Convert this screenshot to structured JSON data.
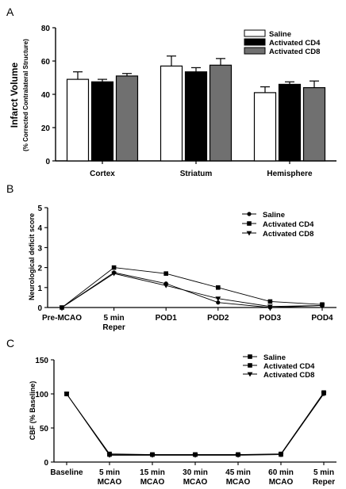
{
  "chart_data": [
    {
      "panel": "A",
      "type": "bar",
      "ylabel": "Infarct Volume",
      "ylabel_sub": "(% Corrected Contralateral Structure)",
      "ylim": [
        0,
        80
      ],
      "yticks": [
        0,
        20,
        40,
        60,
        80
      ],
      "categories": [
        "Cortex",
        "Striatum",
        "Hemisphere"
      ],
      "legend_position": "top-right",
      "series": [
        {
          "name": "Saline",
          "color": "#ffffff",
          "values": [
            49,
            57,
            41
          ],
          "errors": [
            4.5,
            6,
            3.5
          ]
        },
        {
          "name": "Activated CD4",
          "color": "#000000",
          "values": [
            47.5,
            53.5,
            46
          ],
          "errors": [
            1.5,
            2.5,
            1.5
          ]
        },
        {
          "name": "Activated CD8",
          "color": "#707070",
          "values": [
            51,
            57.5,
            44
          ],
          "errors": [
            1.5,
            4,
            4
          ]
        }
      ]
    },
    {
      "panel": "B",
      "type": "line",
      "ylabel": "Neurological deficit score",
      "ylim": [
        0,
        5
      ],
      "yticks": [
        0,
        1,
        2,
        3,
        4,
        5
      ],
      "categories": [
        "Pre-MCAO",
        "5 min\nReper",
        "POD1",
        "POD2",
        "POD3",
        "POD4"
      ],
      "legend_position": "top-right",
      "series": [
        {
          "name": "Saline",
          "marker": "circle",
          "values": [
            0,
            1.75,
            1.2,
            0.25,
            0,
            0.1
          ]
        },
        {
          "name": "Activated CD4",
          "marker": "square",
          "values": [
            0,
            2,
            1.7,
            1,
            0.3,
            0.15
          ]
        },
        {
          "name": "Activated CD8",
          "marker": "triangle-down",
          "values": [
            0,
            1.7,
            1.1,
            0.45,
            0.05,
            0.1
          ]
        }
      ]
    },
    {
      "panel": "C",
      "type": "line",
      "ylabel": "CBF (% Baseline)",
      "ylim": [
        0,
        150
      ],
      "yticks": [
        0,
        50,
        100,
        150
      ],
      "categories": [
        "Baseline",
        "5 min\nMCAO",
        "15 min\nMCAO",
        "30 min\nMCAO",
        "45 min\nMCAO",
        "60 min\nMCAO",
        "5 min\nReper"
      ],
      "legend_position": "top-right",
      "series": [
        {
          "name": "Saline",
          "marker": "square",
          "values": [
            100,
            12,
            11,
            11,
            11,
            12,
            102
          ]
        },
        {
          "name": "Activated CD4",
          "marker": "square",
          "values": [
            100,
            11,
            11,
            11,
            11,
            11,
            101
          ]
        },
        {
          "name": "Activated CD8",
          "marker": "triangle-down",
          "values": [
            100,
            10,
            10,
            10,
            10,
            11,
            100
          ]
        }
      ]
    }
  ]
}
